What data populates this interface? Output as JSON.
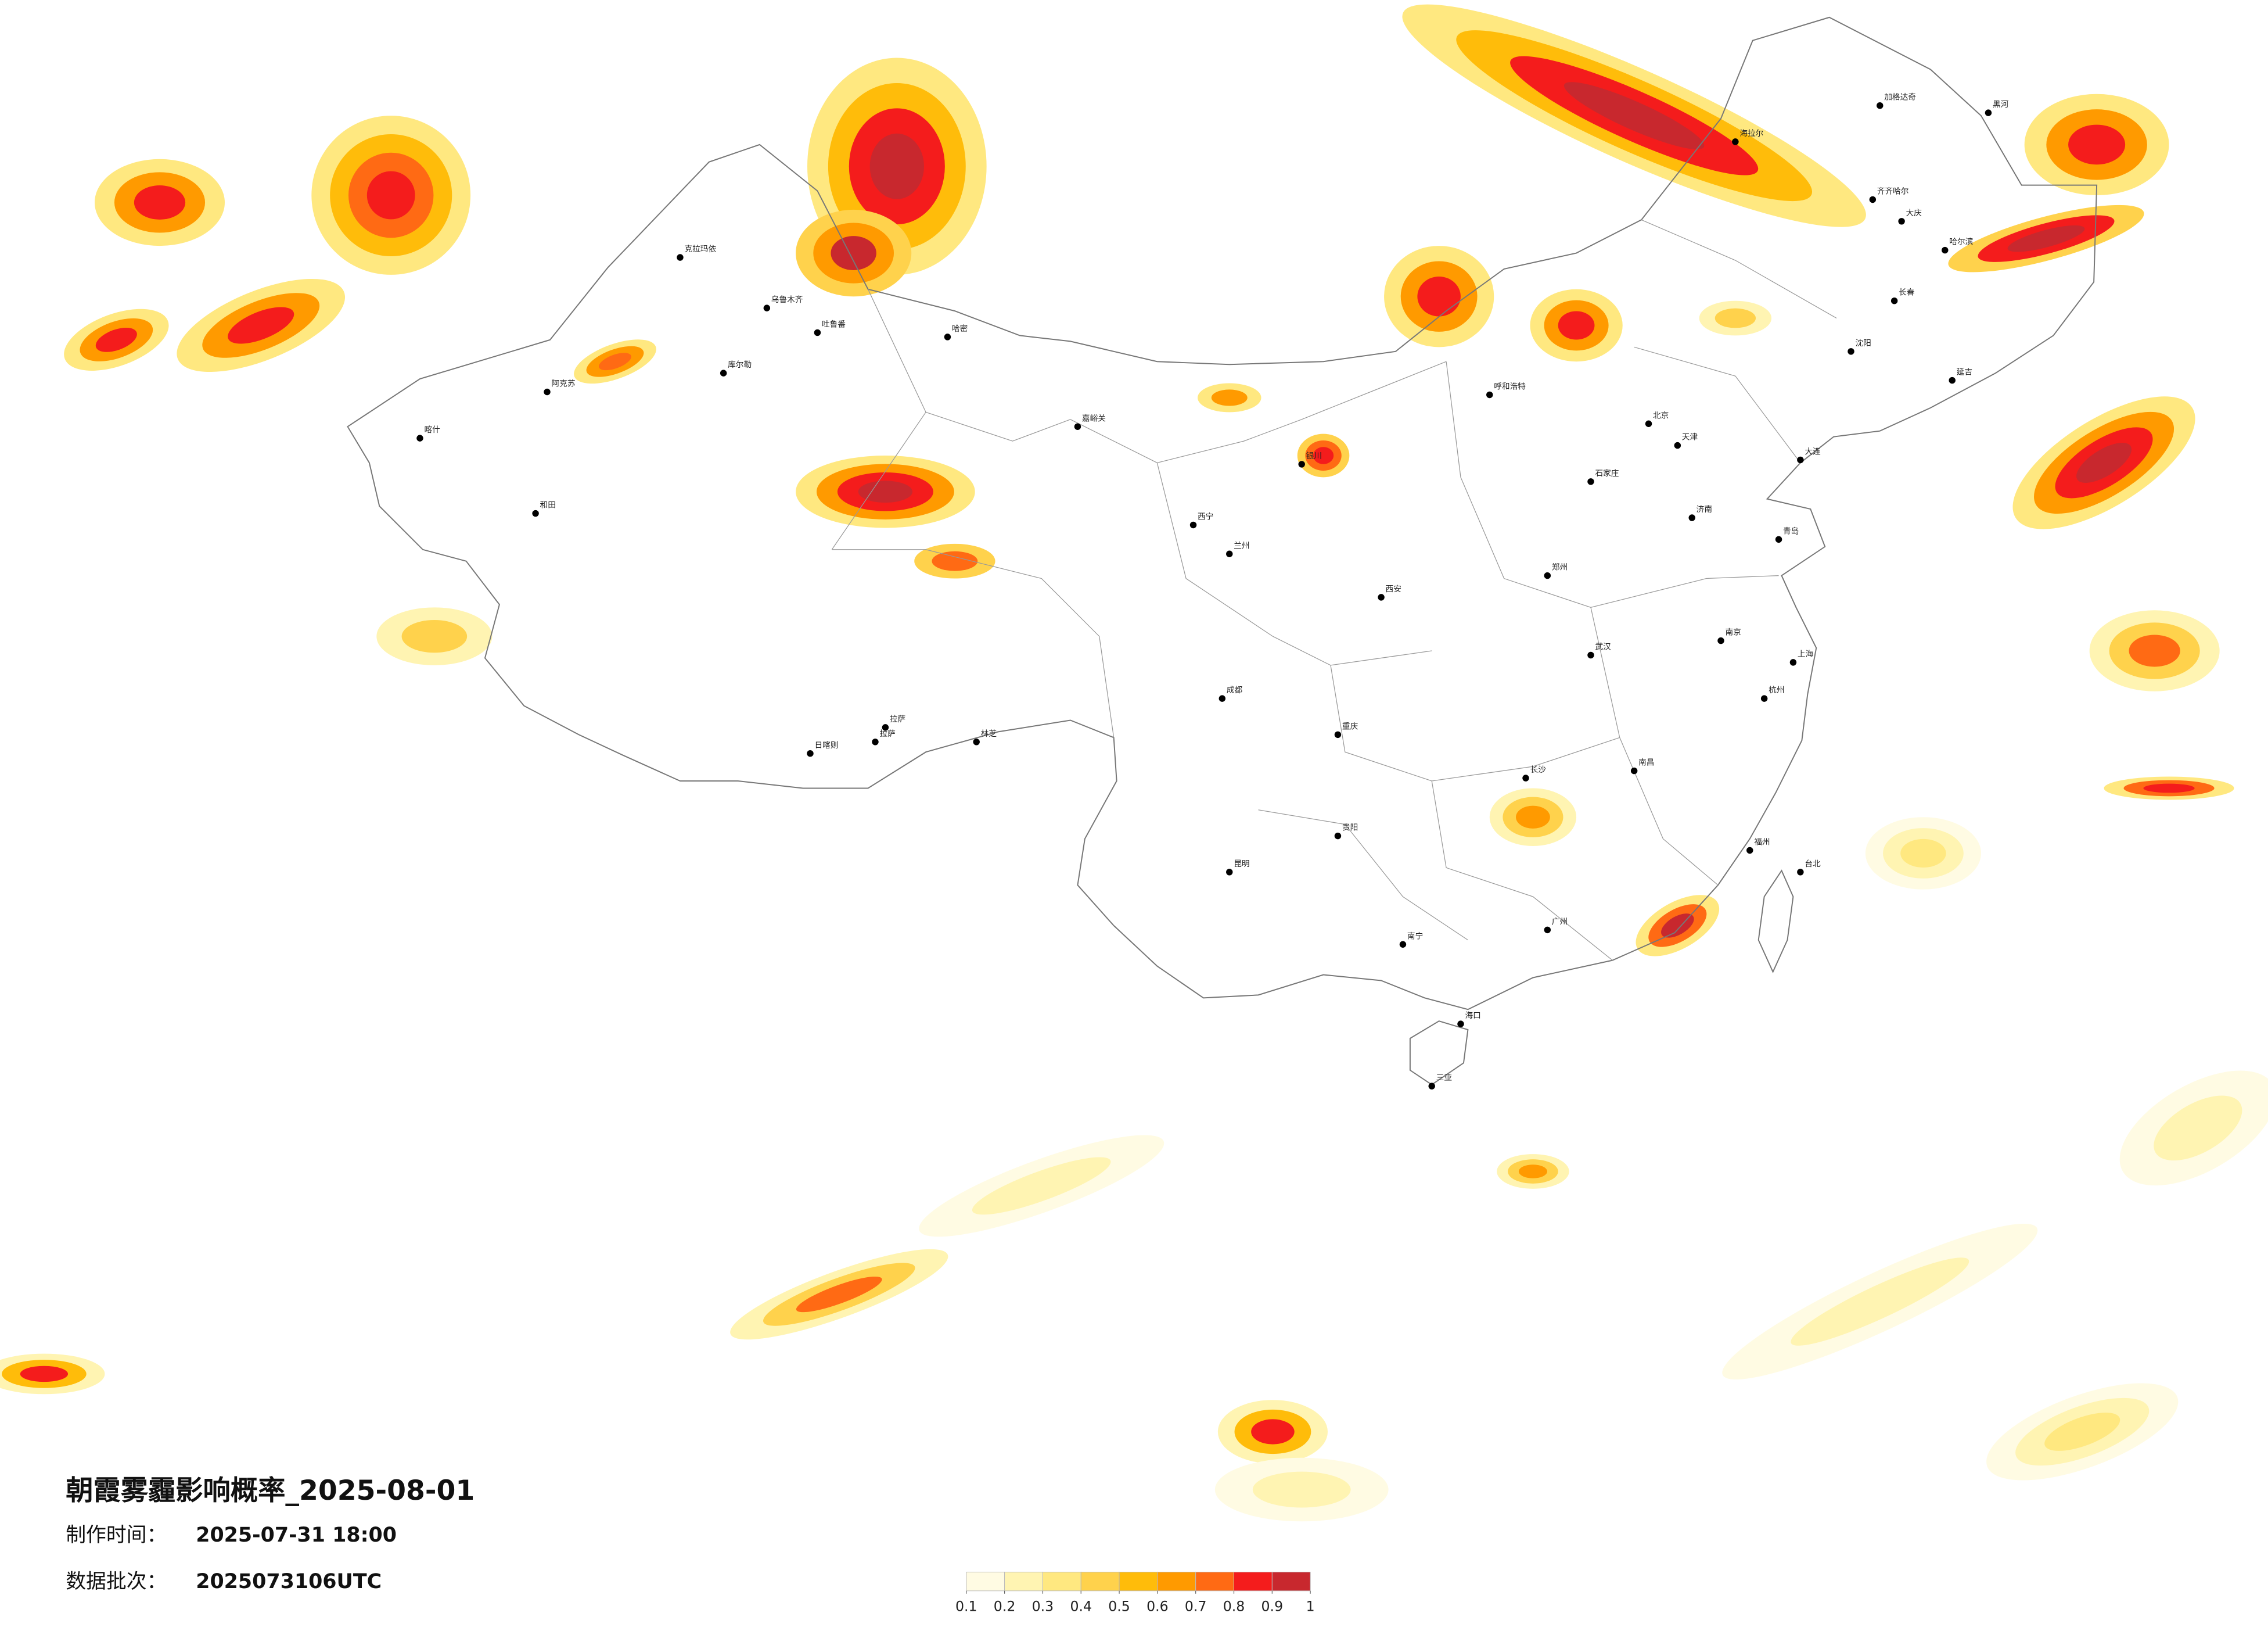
{
  "title": "朝霞雾霾影响概率_2025-08-01",
  "production_time": {
    "label": "制作时间：",
    "value": "2025-07-31 18:00"
  },
  "data_batch": {
    "label": "数据批次：",
    "value": "2025073106UTC"
  },
  "legend": {
    "ticks": [
      0.1,
      0.2,
      0.3,
      0.4,
      0.5,
      0.6,
      0.7,
      0.8,
      0.9,
      1
    ],
    "colors": [
      "#fffbe3",
      "#fff4b2",
      "#ffe880",
      "#ffd24c",
      "#ffbc0a",
      "#ff9a00",
      "#ff6a14",
      "#f41c1c",
      "#c8282e"
    ]
  },
  "cities": [
    "克拉玛依",
    "乌鲁木齐",
    "吐鲁番",
    "哈密",
    "库尔勒",
    "阿克苏",
    "喀什",
    "和田",
    "日喀则",
    "拉萨",
    "林芝",
    "嘉峪关",
    "西宁",
    "兰州",
    "银川",
    "呼和浩特",
    "北京",
    "天津",
    "石家庄",
    "济南",
    "青岛",
    "郑州",
    "西安",
    "成都",
    "重庆",
    "武汉",
    "南京",
    "上海",
    "杭州",
    "南昌",
    "长沙",
    "福州",
    "贵阳",
    "昆明",
    "南宁",
    "广州",
    "海口",
    "三亚",
    "沈阳",
    "长春",
    "哈尔滨",
    "大庆",
    "齐齐哈尔",
    "海拉尔",
    "加格达奇",
    "黑河",
    "台北",
    "延吉",
    "大连",
    "拉萨"
  ]
}
